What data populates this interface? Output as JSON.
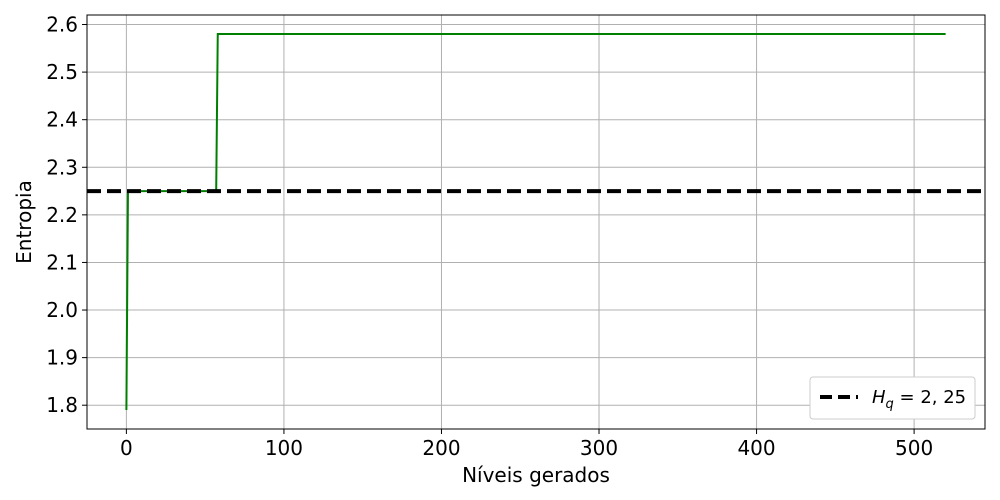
{
  "chart_data": {
    "type": "line",
    "title": "",
    "xlabel": "Níveis gerados",
    "ylabel": "Entropia",
    "xlim": [
      -25,
      545
    ],
    "ylim": [
      1.75,
      2.62
    ],
    "xticks": [
      0,
      100,
      200,
      300,
      400,
      500
    ],
    "xtick_labels": [
      "0",
      "100",
      "200",
      "300",
      "400",
      "500"
    ],
    "yticks": [
      1.8,
      1.9,
      2.0,
      2.1,
      2.2,
      2.3,
      2.4,
      2.5,
      2.6
    ],
    "ytick_labels": [
      "1.8",
      "1.9",
      "2.0",
      "2.1",
      "2.2",
      "2.3",
      "2.4",
      "2.5",
      "2.6"
    ],
    "grid": true,
    "legend_position": "bottom-right",
    "series": [
      {
        "kind": "line",
        "color": "#008000",
        "style": "solid",
        "x": [
          0,
          1,
          57,
          58,
          520
        ],
        "y": [
          1.79,
          2.25,
          2.25,
          2.58,
          2.58
        ]
      },
      {
        "kind": "hline",
        "name": "H_q = 2,25",
        "color": "#000000",
        "style": "dashed",
        "y": 2.25
      }
    ]
  }
}
